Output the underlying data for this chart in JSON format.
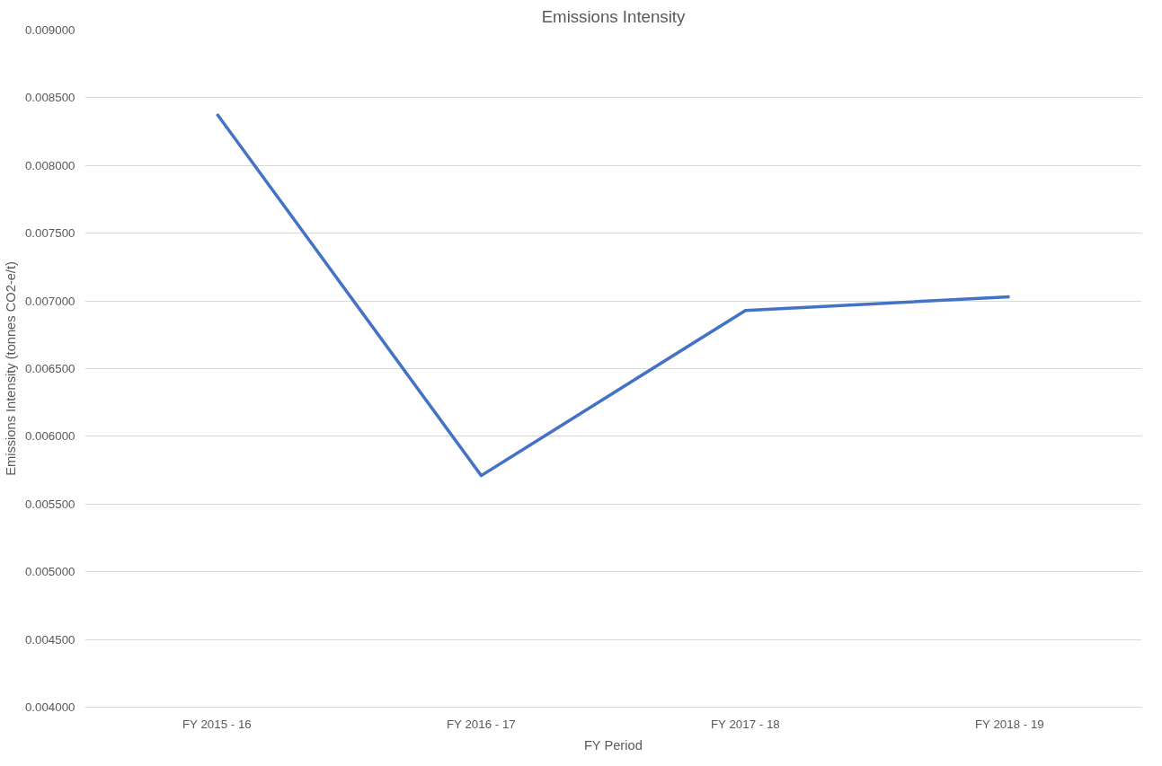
{
  "chart_data": {
    "type": "line",
    "title": "Emissions Intensity",
    "xlabel": "FY Period",
    "ylabel": "Emissions Intensity (tonnes CO2-e/t)",
    "categories": [
      "FY 2015 - 16",
      "FY 2016 - 17",
      "FY 2017 - 18",
      "FY 2018 - 19"
    ],
    "series": [
      {
        "color": "#4472c4",
        "values": [
          0.00838,
          0.00571,
          0.00693,
          0.00703
        ]
      }
    ],
    "ylim": [
      0.004,
      0.009
    ],
    "yticks": [
      {
        "value": 0.004,
        "label": "0.004000"
      },
      {
        "value": 0.0045,
        "label": "0.004500"
      },
      {
        "value": 0.005,
        "label": "0.005000"
      },
      {
        "value": 0.0055,
        "label": "0.005500"
      },
      {
        "value": 0.006,
        "label": "0.006000"
      },
      {
        "value": 0.0065,
        "label": "0.006500"
      },
      {
        "value": 0.007,
        "label": "0.007000"
      },
      {
        "value": 0.0075,
        "label": "0.007500"
      },
      {
        "value": 0.008,
        "label": "0.008000"
      },
      {
        "value": 0.0085,
        "label": "0.008500"
      },
      {
        "value": 0.009,
        "label": "0.009000"
      }
    ],
    "grid": "y",
    "marker": "none",
    "line_style": "solid"
  }
}
